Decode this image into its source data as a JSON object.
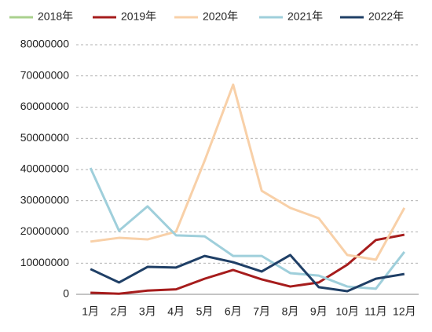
{
  "chart_data": {
    "type": "line",
    "categories": [
      "1月",
      "2月",
      "3月",
      "4月",
      "5月",
      "6月",
      "7月",
      "8月",
      "9月",
      "10月",
      "11月",
      "12月"
    ],
    "series": [
      {
        "name": "2018年",
        "color": "#a9d18e",
        "values": [
          null,
          null,
          null,
          null,
          null,
          null,
          null,
          null,
          null,
          null,
          null,
          null
        ]
      },
      {
        "name": "2019年",
        "color": "#a61c1c",
        "values": [
          500000,
          200000,
          1200000,
          1600000,
          5000000,
          7800000,
          4800000,
          2500000,
          3800000,
          9500000,
          17400000,
          19100000
        ]
      },
      {
        "name": "2020年",
        "color": "#f8d0a8",
        "values": [
          16900000,
          18100000,
          17600000,
          20100000,
          42800000,
          67200000,
          33200000,
          27700000,
          24400000,
          12600000,
          11100000,
          27700000
        ]
      },
      {
        "name": "2021年",
        "color": "#9fcfdb",
        "values": [
          40500000,
          20400000,
          28200000,
          18900000,
          18600000,
          12300000,
          12300000,
          6800000,
          6000000,
          2500000,
          1800000,
          13600000
        ]
      },
      {
        "name": "2022年",
        "color": "#1f3f66",
        "values": [
          8100000,
          3800000,
          8800000,
          8600000,
          12300000,
          10300000,
          7300000,
          12600000,
          2300000,
          1000000,
          5000000,
          6500000
        ]
      }
    ],
    "ylim": [
      0,
      80000000
    ],
    "yticks": [
      0,
      10000000,
      20000000,
      30000000,
      40000000,
      50000000,
      60000000,
      70000000,
      80000000
    ],
    "grid": true
  }
}
